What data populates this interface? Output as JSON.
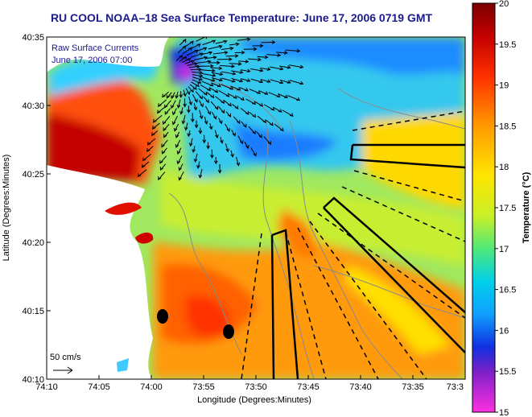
{
  "title": "RU COOL  NOAA–18  Sea Surface Temperature:  June 17, 2006 0719 GMT",
  "overlay": {
    "line1": "Raw Surface Currents",
    "line2": "June 17, 2006 07:00"
  },
  "scale": {
    "label": "50 cm/s"
  },
  "axes": {
    "xlabel": "Longitude (Degrees:Minutes)",
    "ylabel": "Latitude (Degrees:Minutes)",
    "xticks": [
      "74:10",
      "74:05",
      "74:00",
      "73:55",
      "73:50",
      "73:45",
      "73:40",
      "73:35",
      "73:3"
    ],
    "yticks": [
      "40:35",
      "40:30",
      "40:25",
      "40:20",
      "40:15",
      "40:10"
    ]
  },
  "colorbar": {
    "label": "Temperature (°C)",
    "ticks": [
      "20",
      "19.5",
      "19",
      "18.5",
      "18",
      "17.5",
      "17",
      "16.5",
      "16",
      "15.5",
      "15"
    ],
    "range": [
      15,
      20
    ]
  },
  "colors": {
    "title": "#1a1a8c",
    "land": "#ffffff",
    "cold": "#1e6fff",
    "warm": "#ff4b00",
    "hot": "#b30000"
  },
  "markers": {
    "count": 2
  }
}
